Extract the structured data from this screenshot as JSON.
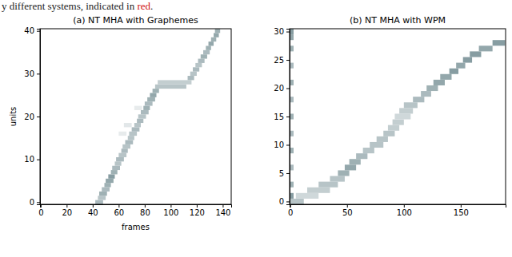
{
  "caption": {
    "text": "y different systems, indicated in ",
    "highlight": "red",
    "suffix": "."
  },
  "chart_data": [
    {
      "type": "heatmap",
      "title": "(a) NT MHA with Graphemes",
      "xlabel": "frames",
      "ylabel": "units",
      "xlim": [
        -0.5,
        146.5
      ],
      "ylim": [
        -0.5,
        40.5
      ],
      "xticks": [
        0,
        20,
        40,
        60,
        80,
        100,
        120,
        140
      ],
      "yticks": [
        0,
        10,
        20,
        30,
        40
      ],
      "zlim": [
        0,
        1
      ],
      "cells": [
        [
          42,
          48,
          0,
          0.35
        ],
        [
          44,
          50,
          1,
          0.3
        ],
        [
          45,
          51,
          2,
          0.4
        ],
        [
          47,
          53,
          3,
          0.35
        ],
        [
          49,
          54,
          4,
          0.4
        ],
        [
          50,
          56,
          5,
          0.45
        ],
        [
          52,
          57,
          6,
          0.5
        ],
        [
          54,
          59,
          7,
          0.4
        ],
        [
          55,
          61,
          8,
          0.35
        ],
        [
          57,
          62,
          9,
          0.3
        ],
        [
          58,
          64,
          10,
          0.35
        ],
        [
          60,
          66,
          11,
          0.3
        ],
        [
          62,
          67,
          12,
          0.35
        ],
        [
          63,
          69,
          13,
          0.3
        ],
        [
          65,
          71,
          14,
          0.35
        ],
        [
          67,
          72,
          15,
          0.3
        ],
        [
          68,
          74,
          16,
          0.3
        ],
        [
          70,
          76,
          17,
          0.35
        ],
        [
          72,
          77,
          18,
          0.3
        ],
        [
          74,
          79,
          19,
          0.35
        ],
        [
          75,
          81,
          20,
          0.3
        ],
        [
          77,
          83,
          21,
          0.35
        ],
        [
          79,
          84,
          22,
          0.4
        ],
        [
          80,
          86,
          23,
          0.35
        ],
        [
          82,
          88,
          24,
          0.4
        ],
        [
          84,
          89,
          25,
          0.45
        ],
        [
          86,
          91,
          26,
          0.4
        ],
        [
          88,
          112,
          27,
          0.3
        ],
        [
          90,
          116,
          28,
          0.25
        ],
        [
          113,
          118,
          29,
          0.35
        ],
        [
          115,
          120,
          30,
          0.3
        ],
        [
          117,
          122,
          31,
          0.35
        ],
        [
          119,
          124,
          32,
          0.3
        ],
        [
          121,
          126,
          33,
          0.35
        ],
        [
          123,
          128,
          34,
          0.4
        ],
        [
          125,
          130,
          35,
          0.35
        ],
        [
          127,
          131,
          36,
          0.4
        ],
        [
          129,
          133,
          37,
          0.45
        ],
        [
          131,
          135,
          38,
          0.4
        ],
        [
          133,
          137,
          39,
          0.45
        ],
        [
          134,
          138,
          40,
          0.4
        ],
        [
          64,
          70,
          18,
          0.12
        ],
        [
          72,
          78,
          22,
          0.1
        ],
        [
          60,
          66,
          16,
          0.1
        ]
      ]
    },
    {
      "type": "heatmap",
      "title": "(b) NT MHA with WPM",
      "xlim": [
        -0.5,
        189.5
      ],
      "ylim": [
        -0.5,
        30.5
      ],
      "xticks": [
        0,
        50,
        100,
        150
      ],
      "yticks": [
        0,
        5,
        10,
        15,
        20,
        25,
        30
      ],
      "zlim": [
        0,
        1
      ],
      "cells": [
        [
          0,
          12,
          0,
          0.3
        ],
        [
          5,
          25,
          1,
          0.2
        ],
        [
          15,
          35,
          2,
          0.25
        ],
        [
          25,
          42,
          3,
          0.3
        ],
        [
          35,
          48,
          4,
          0.3
        ],
        [
          42,
          52,
          5,
          0.4
        ],
        [
          48,
          58,
          6,
          0.45
        ],
        [
          52,
          62,
          7,
          0.4
        ],
        [
          58,
          68,
          8,
          0.35
        ],
        [
          64,
          74,
          9,
          0.3
        ],
        [
          70,
          82,
          10,
          0.3
        ],
        [
          76,
          86,
          11,
          0.3
        ],
        [
          82,
          92,
          12,
          0.3
        ],
        [
          86,
          96,
          13,
          0.25
        ],
        [
          90,
          100,
          14,
          0.25
        ],
        [
          92,
          106,
          15,
          0.2
        ],
        [
          96,
          108,
          16,
          0.25
        ],
        [
          100,
          112,
          17,
          0.3
        ],
        [
          108,
          118,
          18,
          0.35
        ],
        [
          115,
          124,
          19,
          0.35
        ],
        [
          120,
          130,
          20,
          0.4
        ],
        [
          126,
          136,
          21,
          0.45
        ],
        [
          132,
          142,
          22,
          0.45
        ],
        [
          140,
          148,
          23,
          0.5
        ],
        [
          146,
          154,
          24,
          0.45
        ],
        [
          152,
          160,
          25,
          0.5
        ],
        [
          158,
          168,
          26,
          0.5
        ],
        [
          166,
          178,
          27,
          0.45
        ],
        [
          178,
          189,
          28,
          0.5
        ],
        [
          0,
          3,
          1,
          0.5
        ],
        [
          0,
          3,
          3,
          0.4
        ],
        [
          0,
          3,
          6,
          0.35
        ],
        [
          0,
          3,
          9,
          0.4
        ],
        [
          0,
          3,
          12,
          0.35
        ],
        [
          0,
          3,
          15,
          0.4
        ],
        [
          0,
          3,
          18,
          0.35
        ],
        [
          0,
          3,
          21,
          0.4
        ],
        [
          0,
          3,
          24,
          0.35
        ],
        [
          0,
          3,
          27,
          0.4
        ],
        [
          0,
          3,
          29,
          0.45
        ],
        [
          0,
          3,
          30,
          0.5
        ]
      ]
    }
  ]
}
